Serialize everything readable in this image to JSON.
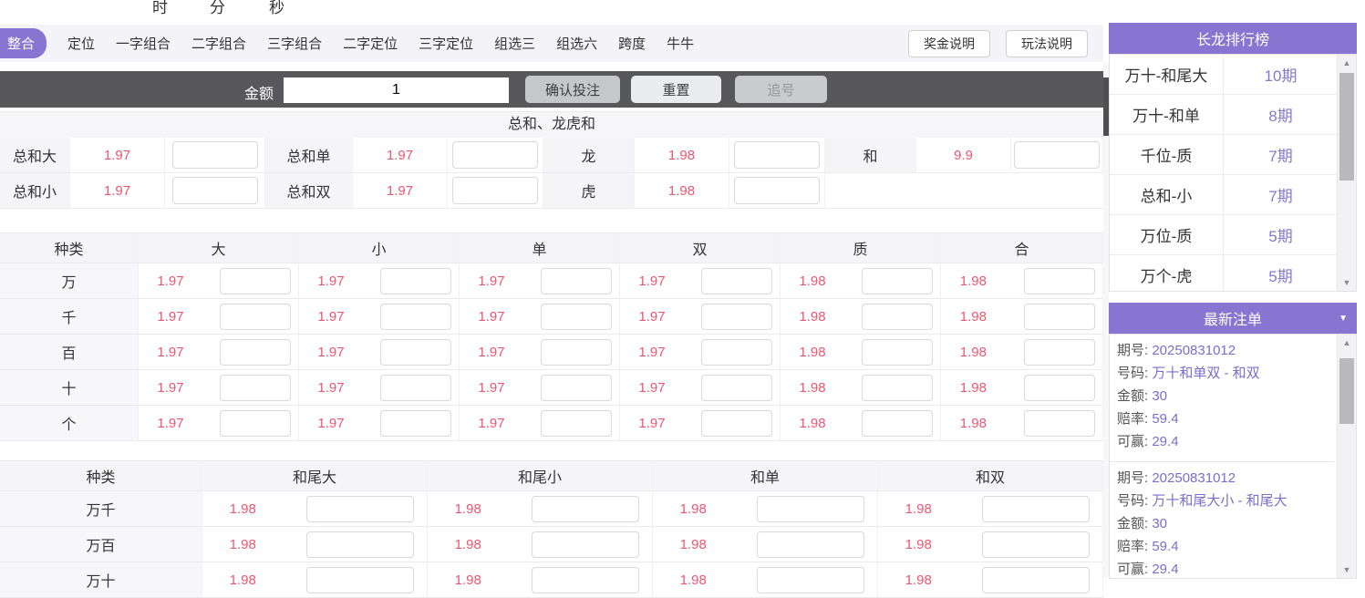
{
  "timer": {
    "labels": [
      "时",
      "分",
      "秒"
    ]
  },
  "tabs": {
    "items": [
      {
        "label": "整合",
        "active": true
      },
      {
        "label": "定位",
        "active": false
      },
      {
        "label": "一字组合",
        "active": false
      },
      {
        "label": "二字组合",
        "active": false
      },
      {
        "label": "三字组合",
        "active": false
      },
      {
        "label": "二字定位",
        "active": false
      },
      {
        "label": "三字定位",
        "active": false
      },
      {
        "label": "组选三",
        "active": false
      },
      {
        "label": "组选六",
        "active": false
      },
      {
        "label": "跨度",
        "active": false
      },
      {
        "label": "牛牛",
        "active": false
      }
    ]
  },
  "help_buttons": [
    "奖金说明",
    "玩法说明"
  ],
  "toolbar": {
    "amount_label": "金额",
    "amount_value": "1",
    "confirm_label": "确认投注",
    "reset_label": "重置",
    "chase_label": "追号"
  },
  "section1": {
    "title": "总和、龙虎和",
    "rows": [
      [
        {
          "label": "总和大",
          "odds": "1.97"
        },
        {
          "label": "总和单",
          "odds": "1.97"
        },
        {
          "label": "龙",
          "odds": "1.98"
        },
        {
          "label": "和",
          "odds": "9.9"
        }
      ],
      [
        {
          "label": "总和小",
          "odds": "1.97"
        },
        {
          "label": "总和双",
          "odds": "1.97"
        },
        {
          "label": "虎",
          "odds": "1.98"
        },
        null
      ]
    ]
  },
  "section2": {
    "headers": [
      "种类",
      "大",
      "小",
      "单",
      "双",
      "质",
      "合"
    ],
    "rows": [
      {
        "label": "万",
        "odds": [
          "1.97",
          "1.97",
          "1.97",
          "1.97",
          "1.98",
          "1.98"
        ]
      },
      {
        "label": "千",
        "odds": [
          "1.97",
          "1.97",
          "1.97",
          "1.97",
          "1.98",
          "1.98"
        ]
      },
      {
        "label": "百",
        "odds": [
          "1.97",
          "1.97",
          "1.97",
          "1.97",
          "1.98",
          "1.98"
        ]
      },
      {
        "label": "十",
        "odds": [
          "1.97",
          "1.97",
          "1.97",
          "1.97",
          "1.98",
          "1.98"
        ]
      },
      {
        "label": "个",
        "odds": [
          "1.97",
          "1.97",
          "1.97",
          "1.97",
          "1.98",
          "1.98"
        ]
      }
    ]
  },
  "section3": {
    "headers": [
      "种类",
      "和尾大",
      "和尾小",
      "和单",
      "和双"
    ],
    "rows": [
      {
        "label": "万千",
        "odds": [
          "1.98",
          "1.98",
          "1.98",
          "1.98"
        ]
      },
      {
        "label": "万百",
        "odds": [
          "1.98",
          "1.98",
          "1.98",
          "1.98"
        ]
      },
      {
        "label": "万十",
        "odds": [
          "1.98",
          "1.98",
          "1.98",
          "1.98"
        ]
      }
    ]
  },
  "sidebar": {
    "ranking": {
      "title": "长龙排行榜",
      "rows": [
        {
          "name": "万十-和尾大",
          "count": "10期"
        },
        {
          "name": "万十-和单",
          "count": "8期"
        },
        {
          "name": "千位-质",
          "count": "7期"
        },
        {
          "name": "总和-小",
          "count": "7期"
        },
        {
          "name": "万位-质",
          "count": "5期"
        },
        {
          "name": "万个-虎",
          "count": "5期"
        }
      ]
    },
    "orders": {
      "title": "最新注单",
      "field_labels": [
        "期号:",
        "号码:",
        "金额:",
        "赔率:",
        "可赢:"
      ],
      "field_keys": [
        "period",
        "number",
        "amount",
        "odds",
        "win"
      ],
      "entries": [
        {
          "period": "20250831012",
          "number": "万十和单双 - 和双",
          "amount": "30",
          "odds": "59.4",
          "win": "29.4"
        },
        {
          "period": "20250831012",
          "number": "万十和尾大小 - 和尾大",
          "amount": "30",
          "odds": "59.4",
          "win": "29.4"
        }
      ]
    }
  },
  "colors": {
    "accent_purple": "#8775d1",
    "odds_red": "#ef5670",
    "toolbar_dark": "#58585b"
  },
  "icons": {
    "scroll_up": "▲",
    "scroll_down": "▼",
    "collapse_arrow": "▼"
  }
}
